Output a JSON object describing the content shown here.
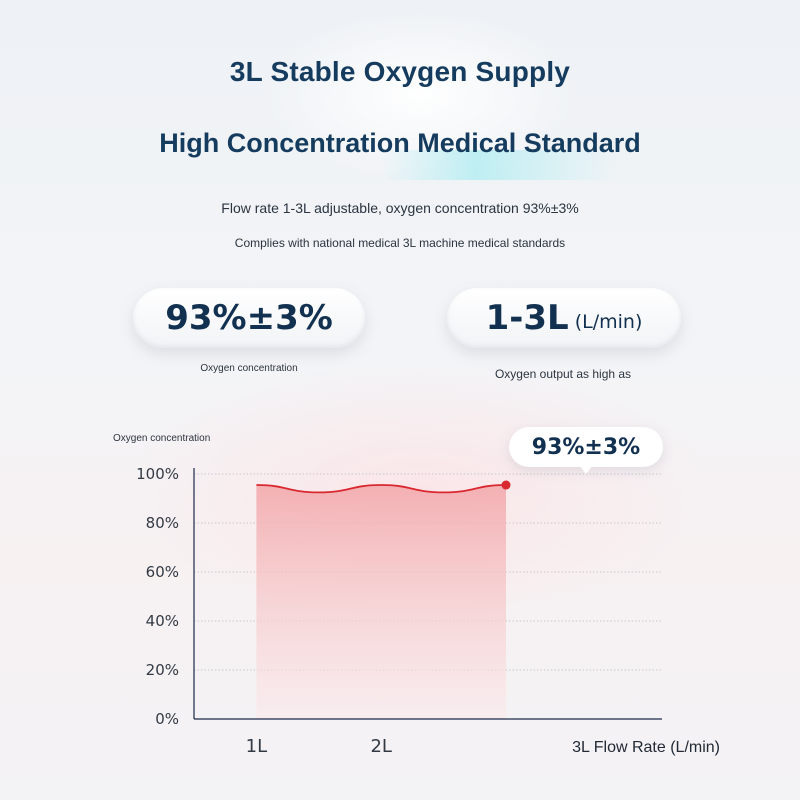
{
  "header": {
    "title": "3L Stable Oxygen Supply",
    "subtitle": "High Concentration Medical Standard",
    "line1": "Flow rate 1-3L adjustable, oxygen concentration 93%±3%",
    "line2": "Complies with national medical 3L machine medical standards"
  },
  "badges": [
    {
      "value": "93%±3%",
      "caption": "Oxygen concentration"
    },
    {
      "value": "1-3L",
      "unit": "(L/min)",
      "caption": "Oxygen output as high as"
    }
  ],
  "chart_data": {
    "type": "area",
    "ylabel": "Oxygen concentration",
    "xlabel": "3L Flow Rate (L/min)",
    "x_ticks": [
      "1L",
      "2L"
    ],
    "y_ticks": [
      "100%",
      "80%",
      "60%",
      "40%",
      "20%",
      "0%"
    ],
    "ylim": [
      0,
      100
    ],
    "xlim": [
      0.5,
      4.25
    ],
    "grid": true,
    "series": [
      {
        "x": [
          1.0,
          1.5,
          2.0,
          2.5,
          3.0
        ],
        "y": [
          95.5,
          92.5,
          95.5,
          92.5,
          95.5
        ]
      }
    ],
    "highlight": {
      "x": 3.0,
      "y": 95.5,
      "label": "93%±3%"
    },
    "colors": {
      "line": "#d9282f",
      "fill_top": "#f2a6a9",
      "fill_bottom": "#fbe9ea",
      "axis": "#1d2a4a",
      "grid": "#b9bcc4"
    }
  }
}
